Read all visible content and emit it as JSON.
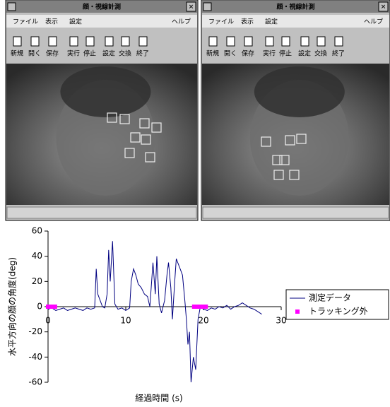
{
  "windows": [
    {
      "title": "顔・視線計測",
      "menu": [
        "ファイル",
        "表示",
        "設定"
      ],
      "help": "ヘルプ",
      "toolbar": [
        "新規",
        "開く",
        "保存",
        "実行",
        "停止",
        "設定",
        "交換",
        "終了"
      ]
    },
    {
      "title": "顔・視線計測",
      "menu": [
        "ファイル",
        "表示",
        "設定"
      ],
      "help": "ヘルプ",
      "toolbar": [
        "新規",
        "開く",
        "保存",
        "実行",
        "停止",
        "設定",
        "交換",
        "終了"
      ]
    }
  ],
  "chart_data": {
    "type": "line",
    "x_label": "経過時間 (s)",
    "y_label": "水平方向の顔の角度(deg)",
    "xlim": [
      0,
      30
    ],
    "xticks": [
      0,
      10,
      20,
      30
    ],
    "ylim": [
      -60,
      60
    ],
    "yticks": [
      -60,
      -40,
      -20,
      0,
      20,
      40,
      60
    ],
    "legend": "right",
    "series": [
      {
        "name": "測定データ",
        "color": "#000080",
        "style": "line",
        "x": [
          0,
          0.5,
          1,
          1.5,
          2,
          2.5,
          3,
          3.5,
          4,
          4.5,
          5,
          5.5,
          6,
          6.2,
          6.4,
          6.7,
          7,
          7.3,
          7.6,
          7.8,
          8,
          8.3,
          8.6,
          9,
          9.5,
          10,
          10.5,
          10.7,
          11,
          11.3,
          11.6,
          12,
          12.4,
          12.8,
          13.1,
          13.5,
          13.8,
          14,
          14.3,
          14.6,
          15,
          15.3,
          15.5,
          15.8,
          16,
          16.3,
          16.5,
          17,
          17.3,
          17.6,
          17.8,
          18,
          18.2,
          18.4,
          18.7,
          19,
          19.3,
          19.6,
          20,
          20.5,
          21,
          21.5,
          22,
          22.5,
          23,
          23.5,
          24,
          24.5,
          25,
          25.5,
          26,
          26.5,
          27,
          27.5
        ],
        "values": [
          -2,
          -1,
          -3,
          -2,
          -1,
          -3,
          -2,
          -1,
          -2,
          -3,
          -1,
          -2,
          -1,
          30,
          10,
          5,
          0,
          -1,
          10,
          45,
          20,
          52,
          2,
          -2,
          -1,
          -3,
          -1,
          20,
          30,
          25,
          18,
          15,
          10,
          8,
          0,
          35,
          10,
          40,
          2,
          -5,
          5,
          25,
          35,
          15,
          -10,
          20,
          38,
          30,
          25,
          5,
          -10,
          -30,
          -20,
          -60,
          -40,
          -50,
          -10,
          0,
          -2,
          -3,
          -1,
          -2,
          0,
          -1,
          1,
          -2,
          0,
          1,
          3,
          1,
          -1,
          -2,
          -4,
          -6
        ]
      },
      {
        "name": "トラッキング外",
        "color": "#ff00ff",
        "style": "markers",
        "x": [
          0,
          0.3,
          0.6,
          0.9,
          18.8,
          19.1,
          19.4,
          19.7,
          20.0,
          20.3
        ],
        "values": [
          0,
          0,
          0,
          0,
          0,
          0,
          0,
          0,
          0,
          0
        ]
      }
    ]
  }
}
